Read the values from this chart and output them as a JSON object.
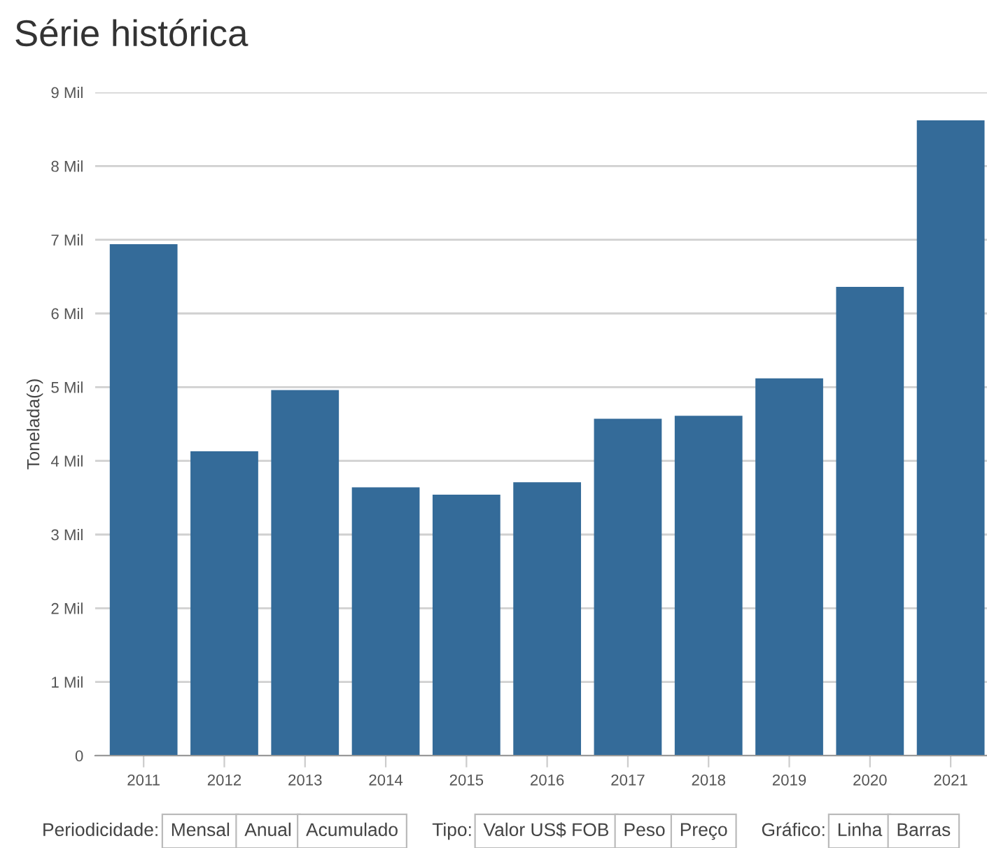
{
  "chart_data": {
    "type": "bar",
    "title": "Série histórica",
    "ylabel": "Tonelada(s)",
    "categories": [
      "2011",
      "2012",
      "2013",
      "2014",
      "2015",
      "2016",
      "2017",
      "2018",
      "2019",
      "2020",
      "2021"
    ],
    "values": [
      6.93,
      4.12,
      4.95,
      3.63,
      3.53,
      3.7,
      4.56,
      4.6,
      5.11,
      6.35,
      8.61
    ],
    "color": "#346b99",
    "ylim": [
      0,
      9
    ],
    "yticks": [
      0,
      {
        "value": 1,
        "label": "1 Mil"
      },
      {
        "value": 2,
        "label": "2 Mil"
      },
      {
        "value": 3,
        "label": "3 Mil"
      },
      {
        "value": 4,
        "label": "4 Mil"
      },
      {
        "value": 5,
        "label": "5 Mil"
      },
      {
        "value": 6,
        "label": "6 Mil"
      },
      {
        "value": 7,
        "label": "7 Mil"
      },
      {
        "value": 8,
        "label": "8 Mil"
      },
      {
        "value": 9,
        "label": "9 Mil"
      }
    ],
    "grid": "y",
    "annotations": [
      "Periodicidade:",
      "Mensal",
      "Anual",
      "Acumulado",
      "Tipo:",
      "Valor US$ FOB",
      "Peso",
      "Preço",
      "Gráfico:",
      "Linha",
      "Barras"
    ]
  }
}
